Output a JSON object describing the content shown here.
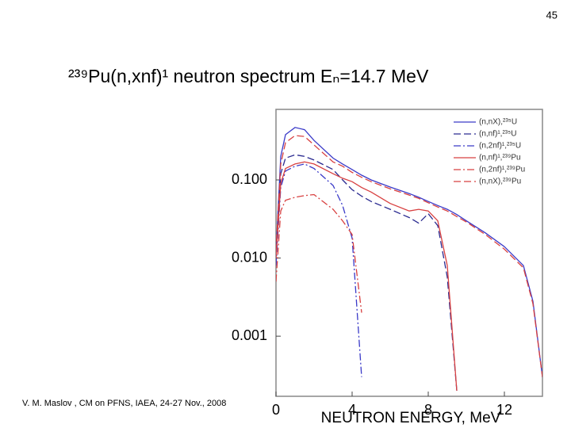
{
  "page_number": "45",
  "footer": "V. M. Maslov ,   CM on PFNS, IAEA, 24-27 Nov., 2008",
  "chart_data": {
    "type": "line",
    "title": "²³⁹Pu(n,xnf)¹ neutron spectrum Eₙ=14.7 MeV",
    "xlabel": "NEUTRON  ENERGY, MeV",
    "log_y": true,
    "legend": "upper right",
    "xlim": [
      0,
      14
    ],
    "xticks": [
      0,
      4,
      8,
      12
    ],
    "ylim": [
      0.00017,
      0.8
    ],
    "yticks": [
      {
        "value": 0.001,
        "label": "0.001"
      },
      {
        "value": 0.01,
        "label": "0.010"
      },
      {
        "value": 0.1,
        "label": "0.100"
      }
    ],
    "x": [
      0,
      0.25,
      0.5,
      1,
      1.5,
      2,
      3,
      3.5,
      4,
      4.5,
      5,
      6,
      7,
      7.5,
      8,
      8.5,
      9,
      9.5,
      10,
      11,
      12,
      13,
      13.5,
      14
    ],
    "series": [
      {
        "name": "(n,nX),²³⁵U",
        "color": "#3a3ac8",
        "style": "solid",
        "values": [
          0.012,
          0.2,
          0.38,
          0.47,
          0.44,
          0.32,
          0.19,
          0.16,
          0.136,
          0.115,
          0.1,
          0.081,
          0.067,
          0.06,
          0.053,
          0.047,
          0.042,
          0.036,
          0.03,
          0.021,
          0.014,
          0.008,
          0.0028,
          0.0003
        ]
      },
      {
        "name": "(n,nf)¹,²³⁵U",
        "color": "#2a2a90",
        "style": "dash",
        "values": [
          0.01,
          0.12,
          0.19,
          0.21,
          0.2,
          0.18,
          0.136,
          0.1,
          0.075,
          0.062,
          0.053,
          0.042,
          0.033,
          0.028,
          0.037,
          0.026,
          0.0057,
          0.0002,
          null,
          null,
          null,
          null,
          null,
          null
        ]
      },
      {
        "name": "(n,2nf)¹,²³⁵U",
        "color": "#3a3ac8",
        "style": "dashdot",
        "values": [
          0.008,
          0.08,
          0.13,
          0.15,
          0.16,
          0.14,
          0.085,
          0.047,
          0.018,
          0.0003,
          null,
          null,
          null,
          null,
          null,
          null,
          null,
          null,
          null,
          null,
          null,
          null,
          null,
          null
        ]
      },
      {
        "name": "(n,nf)¹,²³⁹Pu",
        "color": "#d84040",
        "style": "solid",
        "values": [
          0.01,
          0.09,
          0.14,
          0.16,
          0.17,
          0.16,
          0.12,
          0.105,
          0.095,
          0.08,
          0.07,
          0.05,
          0.04,
          0.042,
          0.04,
          0.03,
          0.008,
          0.0002,
          null,
          null,
          null,
          null,
          null,
          null
        ]
      },
      {
        "name": "(n,2nf)¹,²³⁹Pu",
        "color": "#d84040",
        "style": "dashdot",
        "values": [
          0.005,
          0.04,
          0.055,
          0.06,
          0.063,
          0.065,
          0.042,
          0.03,
          0.02,
          0.002,
          null,
          null,
          null,
          null,
          null,
          null,
          null,
          null,
          null,
          null,
          null,
          null,
          null,
          null
        ]
      },
      {
        "name": "(n,nX),²³⁹Pu",
        "color": "#d84040",
        "style": "dash",
        "values": [
          0.012,
          0.16,
          0.3,
          0.37,
          0.36,
          0.28,
          0.17,
          0.15,
          0.125,
          0.108,
          0.095,
          0.077,
          0.064,
          0.058,
          0.051,
          0.045,
          0.04,
          0.034,
          0.029,
          0.02,
          0.013,
          0.0075,
          0.0026,
          0.0003
        ]
      }
    ]
  }
}
